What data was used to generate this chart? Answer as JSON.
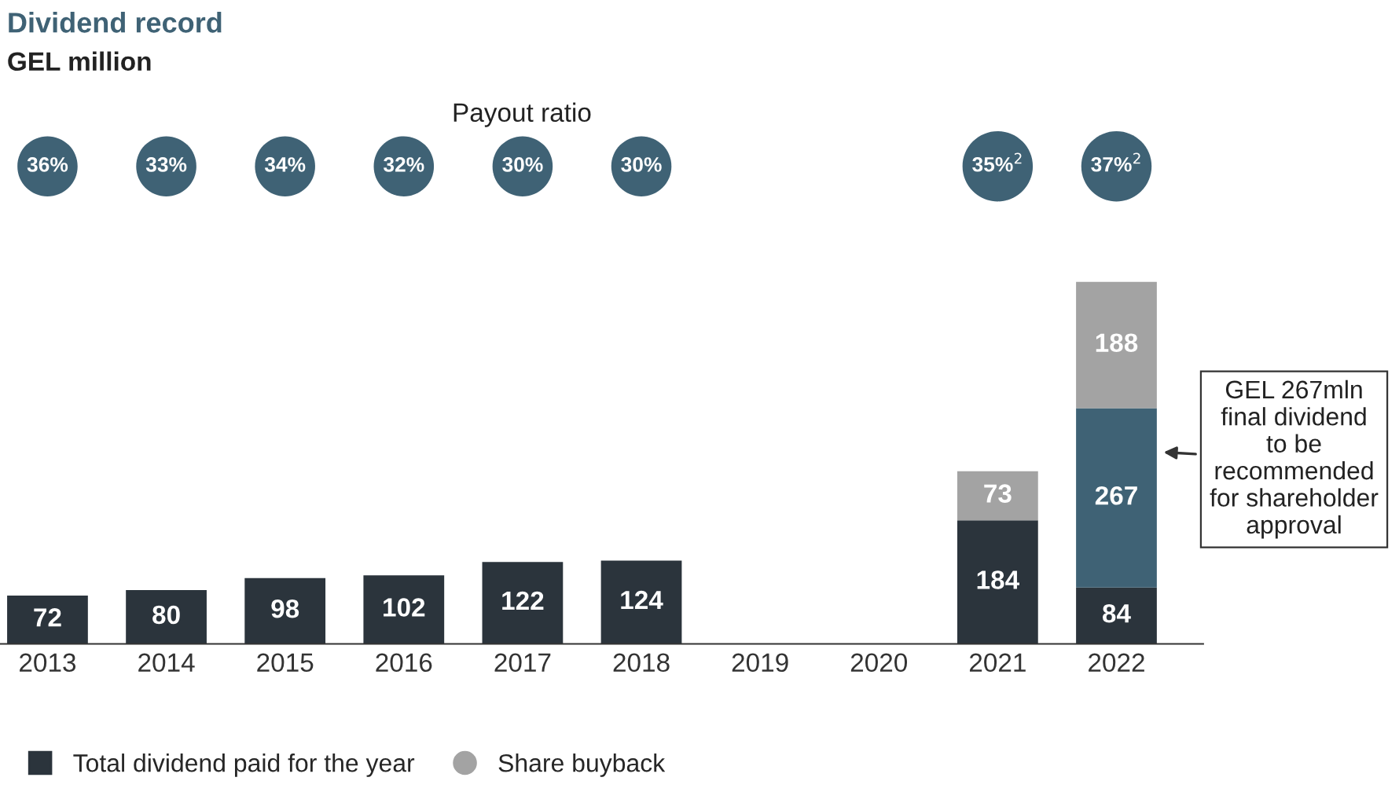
{
  "chart_data": {
    "type": "bar",
    "title": "Dividend record",
    "subtitle": "GEL million",
    "categories": [
      "2013",
      "2014",
      "2015",
      "2016",
      "2017",
      "2018",
      "2019",
      "2020",
      "2021",
      "2022"
    ],
    "stacked": true,
    "data_labels": true,
    "grid": false,
    "legend": "bottom left",
    "series": [
      {
        "name": "Total dividend paid for the year",
        "color": "#2b343c",
        "values": [
          72,
          80,
          98,
          102,
          122,
          124,
          null,
          null,
          184,
          84
        ]
      },
      {
        "color": "#3f6275",
        "values": [
          null,
          null,
          null,
          null,
          null,
          null,
          null,
          null,
          null,
          267
        ]
      },
      {
        "name": "Share buyback",
        "color": "#a3a3a3",
        "values": [
          null,
          null,
          null,
          null,
          null,
          null,
          null,
          null,
          73,
          188
        ]
      }
    ],
    "annotations": [
      "Payout ratio",
      "36%",
      "33%",
      "34%",
      "32%",
      "30%",
      "30%",
      "35%$^{2}$",
      "37%$^{2}$",
      "GEL 267mln\nfinal dividend\nto be\nrecommended\nfor shareholder\napproval"
    ]
  }
}
